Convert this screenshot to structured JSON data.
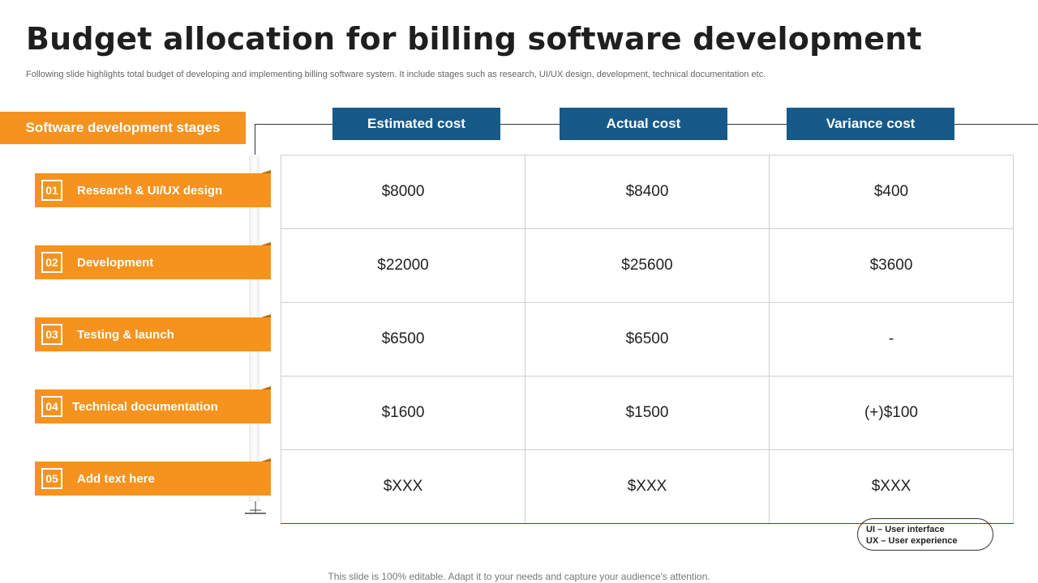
{
  "slide": {
    "title": "Budget allocation for billing software development",
    "subtitle": "Following slide highlights total budget of developing and implementing billing software system. It include stages such as research, UI/UX design, development, technical documentation etc.",
    "stages_header": "Software development stages",
    "stages": [
      {
        "num": "01",
        "label": "Research & UI/UX design"
      },
      {
        "num": "02",
        "label": "Development"
      },
      {
        "num": "03",
        "label": "Testing & launch"
      },
      {
        "num": "04",
        "label": "Technical documentation"
      },
      {
        "num": "05",
        "label": "Add text here"
      }
    ],
    "columns": [
      "Estimated cost",
      "Actual cost",
      "Variance cost"
    ],
    "rows": [
      [
        "$8000",
        "$8400",
        "$400"
      ],
      [
        "$22000",
        "$25600",
        "$3600"
      ],
      [
        "$6500",
        "$6500",
        "-"
      ],
      [
        "$1600",
        "$1500",
        "(+)$100"
      ],
      [
        "$XXX",
        "$XXX",
        "$XXX"
      ]
    ],
    "legend": [
      "UI – User interface",
      "UX – User experience"
    ],
    "footer": "This slide is 100% editable. Adapt it to your needs and capture your audience's attention."
  },
  "colors": {
    "orange": "#f5931e",
    "blue": "#175a8a"
  }
}
